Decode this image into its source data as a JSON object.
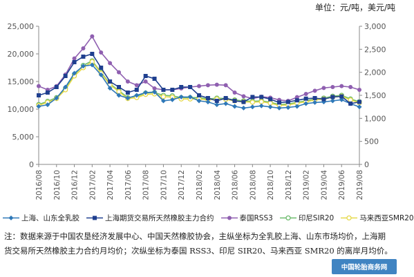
{
  "unit_label": "单位：元/吨，美元/吨",
  "note": "注：数据来源于中国农垦经济发展中心、中国天然橡胶协会，主纵坐标为全乳胶上海、山东市场均价，上海期货交易所天然橡胶主力合约月均价；次纵坐标为泰国 RSS3、印尼 SIR20、马来西亚 SMR20 的离岸月均价。",
  "watermark": "中国轮胎商务网",
  "colors": {
    "shanghai_shandong": "#2e78b8",
    "shfe": "#1f3f8f",
    "rss3": "#8f5fb0",
    "sir20": "#6cbb6c",
    "smr20": "#e6d94a",
    "axis": "#888888",
    "text": "#555555"
  },
  "chart_data": {
    "type": "line",
    "categories": [
      "2016/08",
      "2016/09",
      "2016/10",
      "2016/11",
      "2016/12",
      "2017/01",
      "2017/02",
      "2017/03",
      "2017/04",
      "2017/05",
      "2017/06",
      "2017/07",
      "2017/08",
      "2017/09",
      "2017/10",
      "2017/11",
      "2017/12",
      "2018/01",
      "2018/02",
      "2018/03",
      "2018/04",
      "2018/05",
      "2018/06",
      "2018/07",
      "2018/08",
      "2018/09",
      "2018/10",
      "2018/11",
      "2018/12",
      "2019/01",
      "2019/02",
      "2019/03",
      "2019/04",
      "2019/05",
      "2019/06",
      "2019/07",
      "2019/08"
    ],
    "x_tick_labels": [
      "2016/08",
      "2016/10",
      "2016/12",
      "2017/02",
      "2017/04",
      "2017/06",
      "2017/08",
      "2017/10",
      "2017/12",
      "2018/02",
      "2018/04",
      "2018/06",
      "2018/08",
      "2018/10",
      "2018/12",
      "2019/02",
      "2019/04",
      "2019/06",
      "2019/08"
    ],
    "y_left": {
      "min": 0,
      "max": 25000,
      "ticks": [
        "0",
        "5,000",
        "10,000",
        "15,000",
        "20,000",
        "25,000"
      ]
    },
    "y_right": {
      "min": 0,
      "max": 3000,
      "ticks": [
        "0",
        "500",
        "1,000",
        "1,500",
        "2,000",
        "2,500",
        "3,000"
      ]
    },
    "series": [
      {
        "name": "上海、山东全乳胶",
        "axis": "left",
        "marker": "diamond",
        "color_key": "shanghai_shandong",
        "values": [
          10500,
          10800,
          12000,
          14000,
          16500,
          17800,
          18000,
          16200,
          13800,
          12500,
          12000,
          12500,
          13000,
          13100,
          11500,
          11700,
          12200,
          12200,
          11500,
          11300,
          10800,
          11000,
          10500,
          10200,
          10400,
          10600,
          10400,
          10200,
          10300,
          10500,
          11000,
          11200,
          11300,
          11500,
          11700,
          11000,
          10400
        ]
      },
      {
        "name": "上海期货交易所天然橡胶主力合约",
        "axis": "left",
        "marker": "square",
        "color_key": "shfe",
        "values": [
          12500,
          13000,
          14000,
          16000,
          18500,
          19500,
          20000,
          17500,
          15000,
          14000,
          13000,
          13500,
          16000,
          15500,
          13500,
          13500,
          14000,
          14000,
          12500,
          12000,
          11500,
          12000,
          11500,
          11300,
          12200,
          12200,
          11800,
          11200,
          11300,
          11600,
          11900,
          12000,
          11800,
          12200,
          12300,
          11000,
          11300
        ]
      },
      {
        "name": "泰国RSS3",
        "axis": "right",
        "marker": "circle",
        "color_key": "rss3",
        "values": [
          1700,
          1620,
          1700,
          1950,
          2300,
          2520,
          2780,
          2430,
          2200,
          2000,
          1800,
          1720,
          1800,
          1650,
          1620,
          1620,
          1650,
          1680,
          1700,
          1720,
          1730,
          1720,
          1560,
          1480,
          1430,
          1470,
          1450,
          1400,
          1380,
          1460,
          1530,
          1600,
          1660,
          1680,
          1700,
          1680,
          1620
        ]
      },
      {
        "name": "印尼SIR20",
        "axis": "right",
        "marker": "circle-open",
        "color_key": "sir20",
        "values": [
          1300,
          1370,
          1450,
          1650,
          1950,
          2150,
          2250,
          2000,
          1750,
          1600,
          1450,
          1480,
          1550,
          1560,
          1500,
          1490,
          1450,
          1450,
          1450,
          1420,
          1440,
          1430,
          1400,
          1380,
          1370,
          1380,
          1350,
          1300,
          1310,
          1350,
          1380,
          1420,
          1440,
          1480,
          1500,
          1420,
          1360
        ]
      },
      {
        "name": "马来西亚SMR20",
        "axis": "right",
        "marker": "circle-open",
        "color_key": "smr20",
        "values": [
          1280,
          1350,
          1430,
          1620,
          1920,
          2100,
          2230,
          1980,
          1730,
          1580,
          1430,
          1450,
          1520,
          1530,
          1470,
          1460,
          1420,
          1420,
          1420,
          1400,
          1420,
          1410,
          1380,
          1360,
          1350,
          1360,
          1330,
          1280,
          1290,
          1330,
          1360,
          1400,
          1420,
          1460,
          1480,
          1400,
          1340
        ]
      }
    ]
  }
}
